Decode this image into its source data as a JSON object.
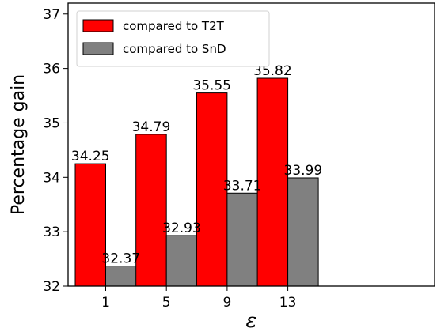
{
  "chart_data": {
    "type": "bar",
    "title": "",
    "xlabel": "ε",
    "ylabel": "Percentage gain",
    "categories": [
      "1",
      "5",
      "9",
      "13"
    ],
    "series": [
      {
        "name": "compared to T2T",
        "values": [
          34.25,
          34.79,
          35.55,
          35.82
        ],
        "labels": [
          "34.25",
          "34.79",
          "35.55",
          "35.82"
        ],
        "color": "#ff0000"
      },
      {
        "name": "compared to SnD",
        "values": [
          32.37,
          32.93,
          33.71,
          33.99
        ],
        "labels": [
          "32.37",
          "32.93",
          "33.71",
          "33.99"
        ],
        "color": "#808080"
      }
    ],
    "ylim": [
      32,
      37.2
    ],
    "yticks": [
      "32",
      "33",
      "34",
      "35",
      "36",
      "37"
    ],
    "grid": false,
    "legend_position": "top-left"
  }
}
